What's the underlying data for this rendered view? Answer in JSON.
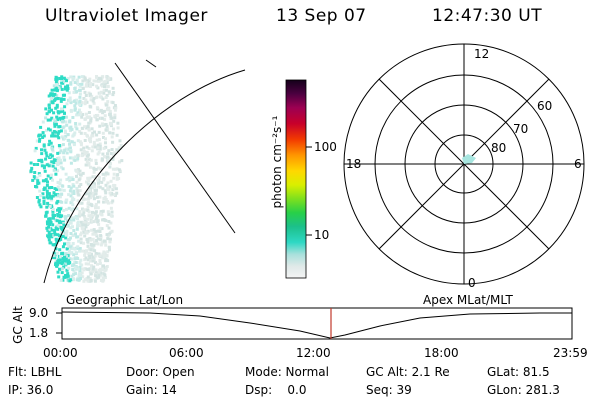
{
  "header": {
    "instrument": "Ultraviolet Imager",
    "date": "13 Sep 07",
    "time": "12:47:30 UT"
  },
  "colorbar": {
    "unit_label": "photon cm⁻²s⁻¹",
    "ticks": [
      "100",
      "10"
    ],
    "scale": "log"
  },
  "polar_plot": {
    "mlt_labels": {
      "top": "12",
      "left": "18",
      "right": "6",
      "bottom": "0"
    },
    "lat_labels": [
      "60",
      "70",
      "80"
    ]
  },
  "timeline": {
    "left_label": "Geographic Lat/Lon",
    "right_label": "Apex MLat/MLT",
    "y_axis_label": "GC Alt",
    "y_ticks": [
      "9.0",
      "1.8"
    ],
    "x_ticks": [
      "00:00",
      "06:00",
      "12:00",
      "18:00",
      "23:59"
    ],
    "marker_color": "#c0392b"
  },
  "info": {
    "row1": [
      "Flt: LBHL",
      "Door: Open",
      "Mode: Normal",
      "GC Alt: 2.1 Re",
      "GLat:  81.5"
    ],
    "row2": [
      "IP: 36.0",
      "Gain: 14",
      "Dsp:    0.0",
      "Seq: 39",
      "GLon: 281.3"
    ]
  }
}
